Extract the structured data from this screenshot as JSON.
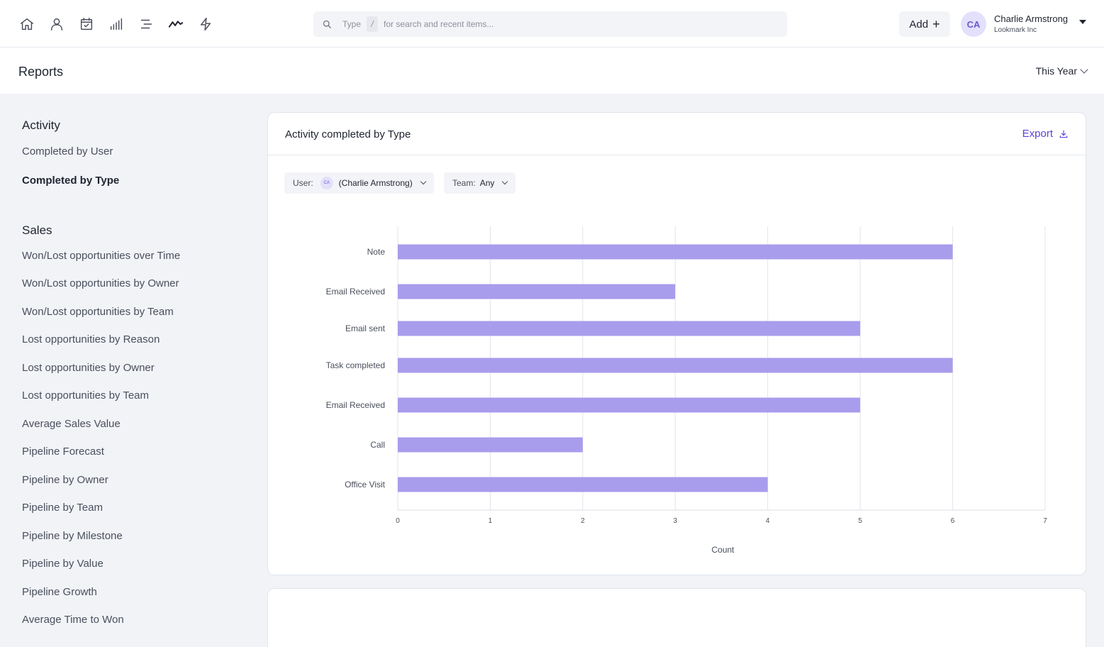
{
  "nav": {
    "icons": [
      "home-icon",
      "user-icon",
      "calendar-check-icon",
      "signal-bars-icon",
      "align-menu-icon",
      "trend-line-icon",
      "lightning-icon"
    ],
    "active": "trend-line-icon"
  },
  "search": {
    "prefix": "Type",
    "shortcut": "/",
    "placeholder": "for search and recent items..."
  },
  "header": {
    "add_label": "Add",
    "add_symbol": "+",
    "user_initials": "CA",
    "user_name": "Charlie Armstrong",
    "user_org": "Lookmark Inc"
  },
  "page": {
    "title": "Reports",
    "period": "This Year"
  },
  "sidebar": {
    "activity_title": "Activity",
    "activity_items": [
      "Completed by User",
      "Completed by Type"
    ],
    "activity_active": "Completed by Type",
    "sales_title": "Sales",
    "sales_items": [
      "Won/Lost opportunities over Time",
      "Won/Lost opportunities by Owner",
      "Won/Lost opportunities by Team",
      "Lost opportunities by Reason",
      "Lost opportunities by Owner",
      "Lost opportunities by Team",
      "Average Sales Value",
      "Pipeline Forecast",
      "Pipeline by Owner",
      "Pipeline by Team",
      "Pipeline by Milestone",
      "Pipeline by Value",
      "Pipeline Growth",
      "Average Time to Won"
    ]
  },
  "card": {
    "title": "Activity completed by Type",
    "export_label": "Export",
    "filters": {
      "user_label": "User:",
      "user_initials": "CA",
      "user_value": "(Charlie Armstrong)",
      "team_label": "Team:",
      "team_value": "Any"
    }
  },
  "colors": {
    "bar": "#a89cec",
    "accent": "#5a45d6"
  },
  "chart_data": {
    "type": "bar",
    "orientation": "horizontal",
    "categories": [
      "Note",
      "Email Received",
      "Email sent",
      "Task completed",
      "Email Received",
      "Call",
      "Office Visit"
    ],
    "values": [
      6,
      3,
      5,
      6,
      5,
      2,
      4
    ],
    "xlabel": "Count",
    "ylabel": "",
    "xlim": [
      0,
      7
    ],
    "xticks": [
      0,
      1,
      2,
      3,
      4,
      5,
      6,
      7
    ],
    "grid": true
  }
}
